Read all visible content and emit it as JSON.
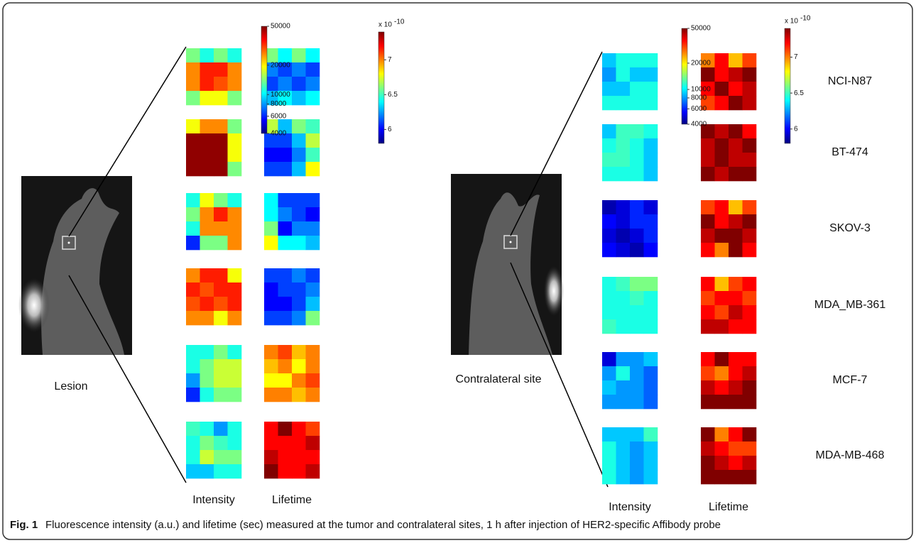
{
  "caption": {
    "label": "Fig. 1",
    "text": "Fluorescence intensity (a.u.) and lifetime (sec) measured at the tumor and contralateral sites, 1 h after injection of HER2-specific Affibody probe"
  },
  "colorbars": {
    "intensity": {
      "clim": [
        4000,
        50000
      ],
      "log": true,
      "ticks": [
        50000,
        20000,
        10000,
        8000,
        6000,
        4000
      ]
    },
    "lifetime": {
      "multiplier": "x 10",
      "exponent": "-10",
      "clim": [
        5.8,
        7.4
      ],
      "log": false,
      "ticks": [
        7,
        6.5,
        6
      ]
    }
  },
  "cell_lines": [
    "NCI-N87",
    "BT-474",
    "SKOV-3",
    "MDA_MB-361",
    "MCF-7",
    "MDA-MB-468"
  ],
  "panels": [
    {
      "site": "Lesion",
      "intensity_label": "Intensity",
      "lifetime_label": "Lifetime",
      "intensity": [
        [
          14000,
          11000,
          14000,
          11000,
          26000,
          34000,
          34000,
          26000,
          26000,
          34000,
          30000,
          26000,
          14000,
          19000,
          19000,
          14000
        ],
        [
          19000,
          26000,
          26000,
          14000,
          48000,
          48000,
          48000,
          19000,
          48000,
          48000,
          48000,
          19000,
          48000,
          48000,
          48000,
          14000
        ],
        [
          11000,
          19000,
          14000,
          11000,
          14000,
          26000,
          34000,
          26000,
          11000,
          26000,
          26000,
          26000,
          6000,
          14000,
          14000,
          26000
        ],
        [
          26000,
          34000,
          34000,
          19000,
          34000,
          30000,
          34000,
          34000,
          30000,
          34000,
          30000,
          34000,
          26000,
          26000,
          19000,
          26000
        ],
        [
          11000,
          11000,
          14000,
          11000,
          11000,
          14000,
          17000,
          17000,
          8000,
          14000,
          17000,
          17000,
          6000,
          11000,
          14000,
          14000
        ],
        [
          12000,
          11000,
          8000,
          11000,
          11000,
          14000,
          12000,
          11000,
          11000,
          17000,
          14000,
          14000,
          9000,
          9000,
          11000,
          11000
        ]
      ],
      "lifetime": [
        [
          6.6,
          6.4,
          6.6,
          6.4,
          6.2,
          6.1,
          6.2,
          6.1,
          6.1,
          6.2,
          6.1,
          6.2,
          6.3,
          6.4,
          6.3,
          6.4
        ],
        [
          6.7,
          6.3,
          6.6,
          6.5,
          6.1,
          6.1,
          6.3,
          6.7,
          6.0,
          6.0,
          6.2,
          6.5,
          6.1,
          6.1,
          6.3,
          6.8
        ],
        [
          6.4,
          6.1,
          6.1,
          6.1,
          6.4,
          6.2,
          6.1,
          6.0,
          6.6,
          6.0,
          6.2,
          6.2,
          6.8,
          6.4,
          6.4,
          6.3
        ],
        [
          6.1,
          6.1,
          6.2,
          6.1,
          6.0,
          6.1,
          6.1,
          6.2,
          6.0,
          6.0,
          6.1,
          6.3,
          6.1,
          6.1,
          6.2,
          6.6
        ],
        [
          7.0,
          7.1,
          6.9,
          7.0,
          6.9,
          7.0,
          6.8,
          7.0,
          6.8,
          6.8,
          7.0,
          7.1,
          7.0,
          7.0,
          6.9,
          7.0
        ],
        [
          7.2,
          7.4,
          7.2,
          7.1,
          7.2,
          7.2,
          7.2,
          7.3,
          7.3,
          7.2,
          7.2,
          7.2,
          7.4,
          7.2,
          7.2,
          7.3
        ]
      ]
    },
    {
      "site": "Contralateral site",
      "intensity_label": "Intensity",
      "lifetime_label": "Lifetime",
      "intensity": [
        [
          9000,
          11000,
          11000,
          11000,
          8000,
          11000,
          9000,
          9000,
          9000,
          9000,
          11000,
          11000,
          11000,
          11000,
          11000,
          11000
        ],
        [
          9000,
          12000,
          12000,
          11000,
          11000,
          12000,
          11000,
          9000,
          12000,
          12000,
          11000,
          9000,
          11000,
          11000,
          11000,
          9000
        ],
        [
          4500,
          5000,
          6000,
          5000,
          5500,
          5000,
          6000,
          6000,
          5000,
          4500,
          5000,
          6000,
          5500,
          5000,
          4500,
          5500
        ],
        [
          11000,
          12000,
          14000,
          14000,
          11000,
          11000,
          12000,
          11000,
          11000,
          11000,
          11000,
          11000,
          12000,
          11000,
          11000,
          11000
        ],
        [
          5000,
          8000,
          8000,
          9000,
          8000,
          11000,
          8000,
          7000,
          9000,
          8000,
          8000,
          7000,
          8000,
          8000,
          8000,
          7000
        ],
        [
          9000,
          9000,
          9000,
          12000,
          11000,
          9000,
          8000,
          9000,
          11000,
          9000,
          8000,
          9000,
          11000,
          9000,
          8000,
          9000
        ]
      ],
      "lifetime": [
        [
          7.0,
          7.2,
          6.9,
          7.1,
          7.4,
          7.2,
          7.3,
          7.4,
          7.2,
          7.4,
          7.2,
          7.3,
          7.1,
          7.2,
          7.4,
          7.3
        ],
        [
          7.4,
          7.3,
          7.4,
          7.2,
          7.3,
          7.4,
          7.3,
          7.4,
          7.3,
          7.4,
          7.3,
          7.3,
          7.4,
          7.3,
          7.4,
          7.4
        ],
        [
          7.1,
          7.2,
          6.9,
          7.1,
          7.4,
          7.2,
          7.3,
          7.4,
          7.3,
          7.4,
          7.4,
          7.3,
          7.2,
          7.0,
          7.4,
          7.2
        ],
        [
          7.2,
          6.9,
          7.1,
          7.2,
          7.1,
          7.2,
          7.2,
          7.1,
          7.2,
          7.1,
          7.3,
          7.2,
          7.3,
          7.3,
          7.2,
          7.2
        ],
        [
          7.2,
          7.4,
          7.2,
          7.2,
          7.1,
          7.0,
          7.2,
          7.3,
          7.3,
          7.2,
          7.3,
          7.4,
          7.4,
          7.4,
          7.4,
          7.4
        ],
        [
          7.4,
          7.0,
          7.2,
          7.4,
          7.3,
          7.2,
          7.1,
          7.1,
          7.4,
          7.3,
          7.2,
          7.3,
          7.4,
          7.4,
          7.4,
          7.4
        ]
      ]
    }
  ]
}
